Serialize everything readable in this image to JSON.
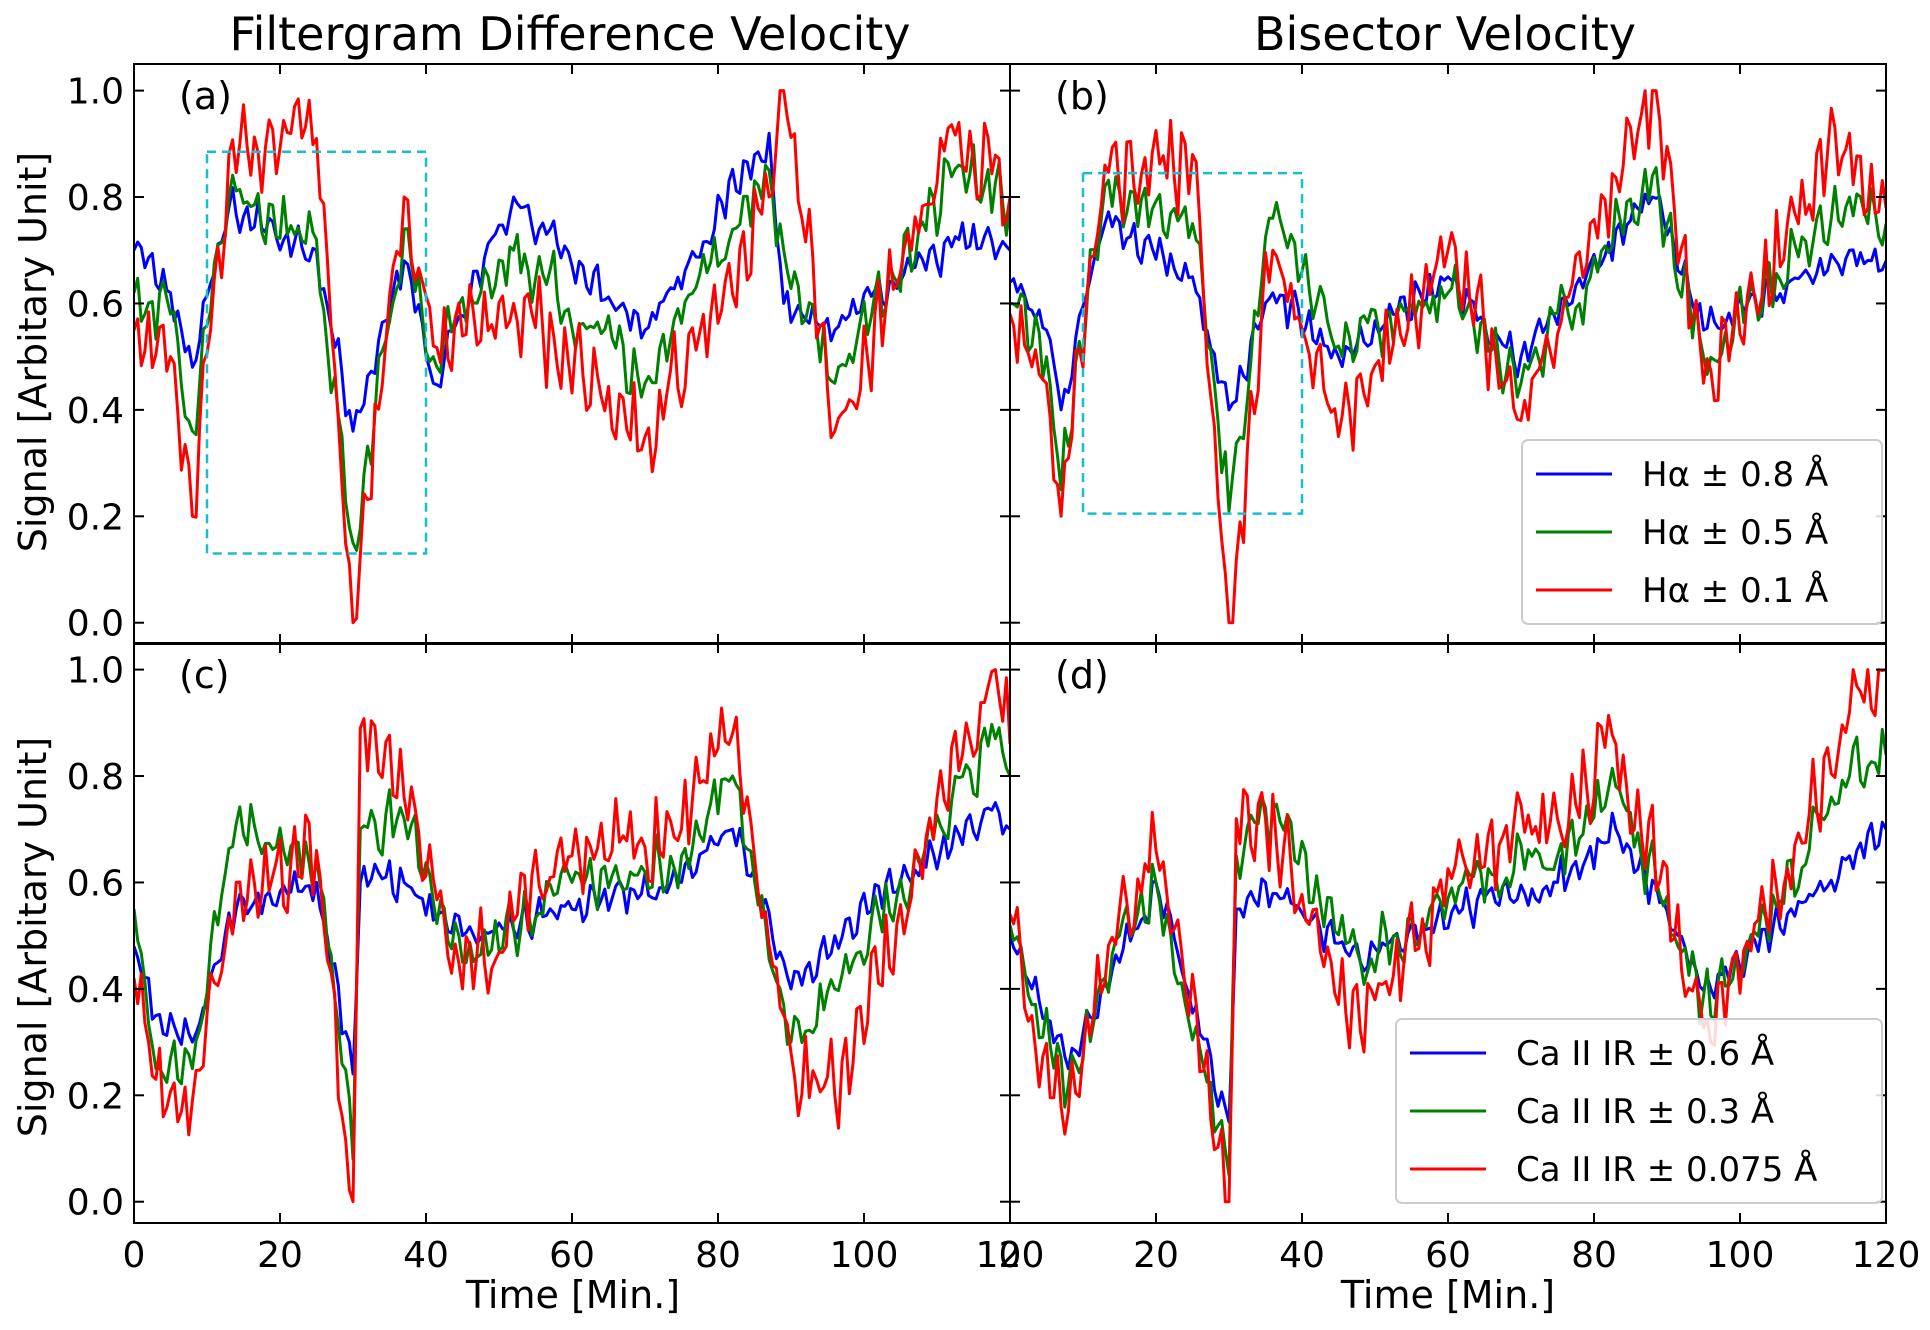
{
  "chart_data": {
    "type": "line",
    "column_titles": [
      "Filtergram Difference Velocity",
      "Bisector Velocity"
    ],
    "ylabel": "Signal [Arbitary Unit]",
    "xlabel": "Time [Min.]",
    "xlim": [
      0,
      120
    ],
    "ylim": [
      -0.04,
      1.05
    ],
    "xticks": [
      0,
      20,
      40,
      60,
      80,
      100,
      120
    ],
    "xtick_labels": [
      "0",
      "20",
      "40",
      "60",
      "80",
      "100",
      "120"
    ],
    "yticks": [
      0.0,
      0.2,
      0.4,
      0.6,
      0.8,
      1.0
    ],
    "ytick_labels": [
      "0.0",
      "0.2",
      "0.4",
      "0.6",
      "0.8",
      "1.0"
    ],
    "legend_location": "lower-right",
    "series_colors": [
      "#0000ff",
      "#008000",
      "#ff0000"
    ],
    "highlight_color": "#17becf",
    "panels": [
      {
        "tag": "(a)",
        "row": 0,
        "col": 0,
        "series_names": [
          "Hα ± 0.8 Å",
          "Hα ± 0.5 Å",
          "Hα ± 0.1 Å"
        ],
        "show_legend": false,
        "highlight_box": {
          "x0": 10,
          "x1": 40,
          "y0": 0.13,
          "y1": 0.885
        },
        "anchors": [
          {
            "t": 0,
            "v": [
              0.7,
              0.62,
              0.55
            ]
          },
          {
            "t": 5,
            "v": [
              0.62,
              0.58,
              0.5
            ]
          },
          {
            "t": 8,
            "v": [
              0.48,
              0.36,
              0.2
            ]
          },
          {
            "t": 13,
            "v": [
              0.78,
              0.8,
              0.88
            ]
          },
          {
            "t": 25,
            "v": [
              0.7,
              0.72,
              0.91
            ]
          },
          {
            "t": 30,
            "v": [
              0.36,
              0.15,
              0.0
            ]
          },
          {
            "t": 37,
            "v": [
              0.68,
              0.74,
              0.8
            ]
          },
          {
            "t": 41,
            "v": [
              0.45,
              0.5,
              0.52
            ]
          },
          {
            "t": 52,
            "v": [
              0.8,
              0.7,
              0.6
            ]
          },
          {
            "t": 70,
            "v": [
              0.55,
              0.45,
              0.35
            ]
          },
          {
            "t": 87,
            "v": [
              0.92,
              0.85,
              0.8
            ]
          },
          {
            "t": 89,
            "v": [
              0.6,
              0.7,
              1.0
            ]
          },
          {
            "t": 96,
            "v": [
              0.55,
              0.45,
              0.36
            ]
          },
          {
            "t": 113,
            "v": [
              0.72,
              0.86,
              0.94
            ]
          },
          {
            "t": 120,
            "v": [
              0.7,
              0.78,
              0.8
            ]
          }
        ]
      },
      {
        "tag": "(b)",
        "row": 0,
        "col": 1,
        "series_names": [
          "Hα ± 0.8 Å",
          "Hα ± 0.5 Å",
          "Hα ± 0.1 Å"
        ],
        "show_legend": true,
        "highlight_box": {
          "x0": 10,
          "x1": 40,
          "y0": 0.205,
          "y1": 0.845
        },
        "anchors": [
          {
            "t": 0,
            "v": [
              0.64,
              0.6,
              0.58
            ]
          },
          {
            "t": 5,
            "v": [
              0.55,
              0.5,
              0.45
            ]
          },
          {
            "t": 7,
            "v": [
              0.4,
              0.25,
              0.2
            ]
          },
          {
            "t": 13,
            "v": [
              0.75,
              0.82,
              0.86
            ]
          },
          {
            "t": 25,
            "v": [
              0.65,
              0.75,
              0.88
            ]
          },
          {
            "t": 30,
            "v": [
              0.4,
              0.21,
              0.0
            ]
          },
          {
            "t": 36,
            "v": [
              0.62,
              0.76,
              0.7
            ]
          },
          {
            "t": 45,
            "v": [
              0.5,
              0.52,
              0.35
            ]
          },
          {
            "t": 60,
            "v": [
              0.65,
              0.62,
              0.7
            ]
          },
          {
            "t": 70,
            "v": [
              0.5,
              0.45,
              0.38
            ]
          },
          {
            "t": 88,
            "v": [
              0.8,
              0.84,
              1.0
            ]
          },
          {
            "t": 95,
            "v": [
              0.55,
              0.5,
              0.45
            ]
          },
          {
            "t": 115,
            "v": [
              0.7,
              0.8,
              0.92
            ]
          },
          {
            "t": 120,
            "v": [
              0.68,
              0.75,
              0.78
            ]
          }
        ]
      },
      {
        "tag": "(c)",
        "row": 1,
        "col": 0,
        "series_names": [
          "Ca II IR ± 0.6 Å",
          "Ca II IR ± 0.3 Å",
          "Ca II IR ± 0.075 Å"
        ],
        "show_legend": false,
        "highlight_box": null,
        "anchors": [
          {
            "t": 0,
            "v": [
              0.48,
              0.55,
              0.42
            ]
          },
          {
            "t": 3,
            "v": [
              0.35,
              0.25,
              0.23
            ]
          },
          {
            "t": 8,
            "v": [
              0.3,
              0.25,
              0.19
            ]
          },
          {
            "t": 14,
            "v": [
              0.55,
              0.71,
              0.6
            ]
          },
          {
            "t": 25,
            "v": [
              0.6,
              0.65,
              0.66
            ]
          },
          {
            "t": 30,
            "v": [
              0.24,
              0.08,
              0.0
            ]
          },
          {
            "t": 31,
            "v": [
              0.6,
              0.7,
              0.89
            ]
          },
          {
            "t": 37,
            "v": [
              0.6,
              0.72,
              0.76
            ]
          },
          {
            "t": 45,
            "v": [
              0.5,
              0.45,
              0.4
            ]
          },
          {
            "t": 60,
            "v": [
              0.55,
              0.6,
              0.65
            ]
          },
          {
            "t": 75,
            "v": [
              0.6,
              0.65,
              0.7
            ]
          },
          {
            "t": 82,
            "v": [
              0.7,
              0.8,
              0.88
            ]
          },
          {
            "t": 90,
            "v": [
              0.4,
              0.3,
              0.28
            ]
          },
          {
            "t": 96,
            "v": [
              0.5,
              0.4,
              0.2
            ]
          },
          {
            "t": 118,
            "v": [
              0.75,
              0.87,
              1.0
            ]
          },
          {
            "t": 120,
            "v": [
              0.7,
              0.8,
              0.86
            ]
          }
        ]
      },
      {
        "tag": "(d)",
        "row": 1,
        "col": 1,
        "series_names": [
          "Ca II IR ± 0.6 Å",
          "Ca II IR ± 0.3 Å",
          "Ca II IR ± 0.075 Å"
        ],
        "show_legend": true,
        "highlight_box": null,
        "anchors": [
          {
            "t": 0,
            "v": [
              0.5,
              0.52,
              0.54
            ]
          },
          {
            "t": 3,
            "v": [
              0.4,
              0.37,
              0.35
            ]
          },
          {
            "t": 8,
            "v": [
              0.25,
              0.22,
              0.17
            ]
          },
          {
            "t": 15,
            "v": [
              0.45,
              0.5,
              0.55
            ]
          },
          {
            "t": 20,
            "v": [
              0.6,
              0.6,
              0.66
            ]
          },
          {
            "t": 30,
            "v": [
              0.15,
              0.05,
              0.0
            ]
          },
          {
            "t": 31,
            "v": [
              0.55,
              0.65,
              0.72
            ]
          },
          {
            "t": 35,
            "v": [
              0.6,
              0.74,
              0.72
            ]
          },
          {
            "t": 48,
            "v": [
              0.45,
              0.45,
              0.32
            ]
          },
          {
            "t": 62,
            "v": [
              0.55,
              0.6,
              0.65
            ]
          },
          {
            "t": 75,
            "v": [
              0.6,
              0.65,
              0.72
            ]
          },
          {
            "t": 83,
            "v": [
              0.7,
              0.78,
              0.86
            ]
          },
          {
            "t": 96,
            "v": [
              0.4,
              0.35,
              0.3
            ]
          },
          {
            "t": 115,
            "v": [
              0.65,
              0.8,
              0.92
            ]
          },
          {
            "t": 120,
            "v": [
              0.7,
              0.84,
              1.0
            ]
          }
        ]
      }
    ]
  }
}
